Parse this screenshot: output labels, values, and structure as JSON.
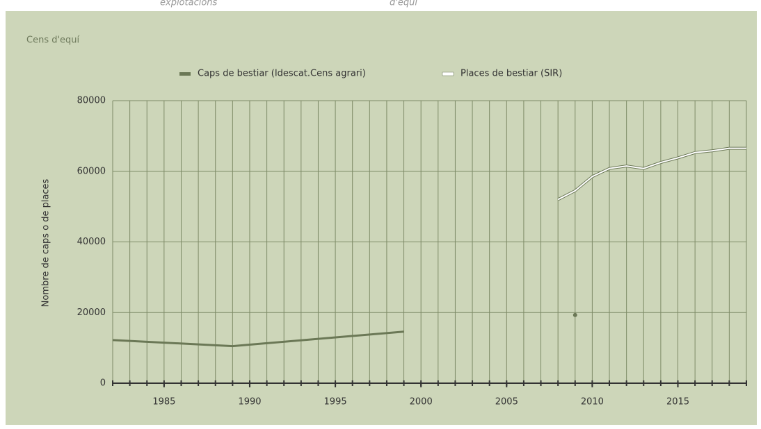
{
  "top_fragments": [
    "explotacions",
    "d'equí"
  ],
  "chart_data": {
    "type": "line",
    "title": "Cens d'equí",
    "y_label": "Nombre de caps o de places",
    "x": [
      1982,
      1989,
      1999,
      2004,
      2009
    ],
    "series": [
      {
        "name": "Caps de bestiar (Idescat.Cens agrari)",
        "color": "#6b7856",
        "values": [
          12200,
          10500,
          14600,
          null,
          19300
        ]
      },
      {
        "name": "Places de bestiar (SIR)",
        "color": "#ffffff",
        "x": [
          2008,
          2009,
          2010,
          2011,
          2012,
          2013,
          2014,
          2015,
          2016,
          2017,
          2018,
          2019
        ],
        "values": [
          52000,
          54500,
          58500,
          60800,
          61500,
          60800,
          62500,
          63800,
          65300,
          65800,
          66500,
          66500
        ]
      }
    ],
    "xlim": [
      1982,
      2019
    ],
    "xticks": [
      1985,
      1990,
      1995,
      2000,
      2005,
      2010,
      2015
    ],
    "ylim": [
      0,
      80000
    ],
    "yticks": [
      0,
      20000,
      40000,
      60000,
      80000
    ],
    "grid": true,
    "legend": "top"
  }
}
